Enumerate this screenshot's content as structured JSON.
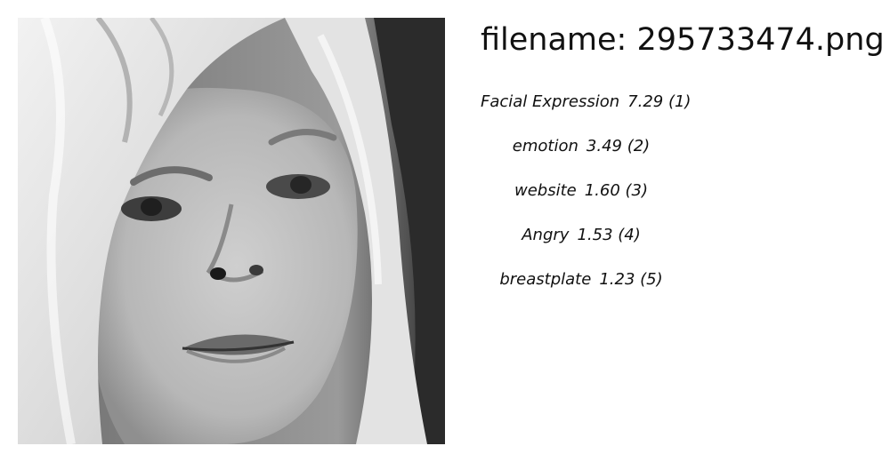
{
  "header": {
    "filename_prefix": "filename:",
    "filename": "295733474.png"
  },
  "labels": [
    {
      "name": "Facial Expression",
      "score": "7.29",
      "rank": "(1)"
    },
    {
      "name": "emotion",
      "score": "3.49",
      "rank": "(2)"
    },
    {
      "name": "website",
      "score": "1.60",
      "rank": "(3)"
    },
    {
      "name": "Angry",
      "score": "1.53",
      "rank": "(4)"
    },
    {
      "name": "breastplate",
      "score": "1.23",
      "rank": "(5)"
    }
  ],
  "image": {
    "type": "grayscale face photograph",
    "palette": {
      "hair": "#e6e6e6",
      "skin": "#b9b9b9",
      "shadow": "#2f2f2f",
      "features": "#3a3a3a"
    }
  }
}
